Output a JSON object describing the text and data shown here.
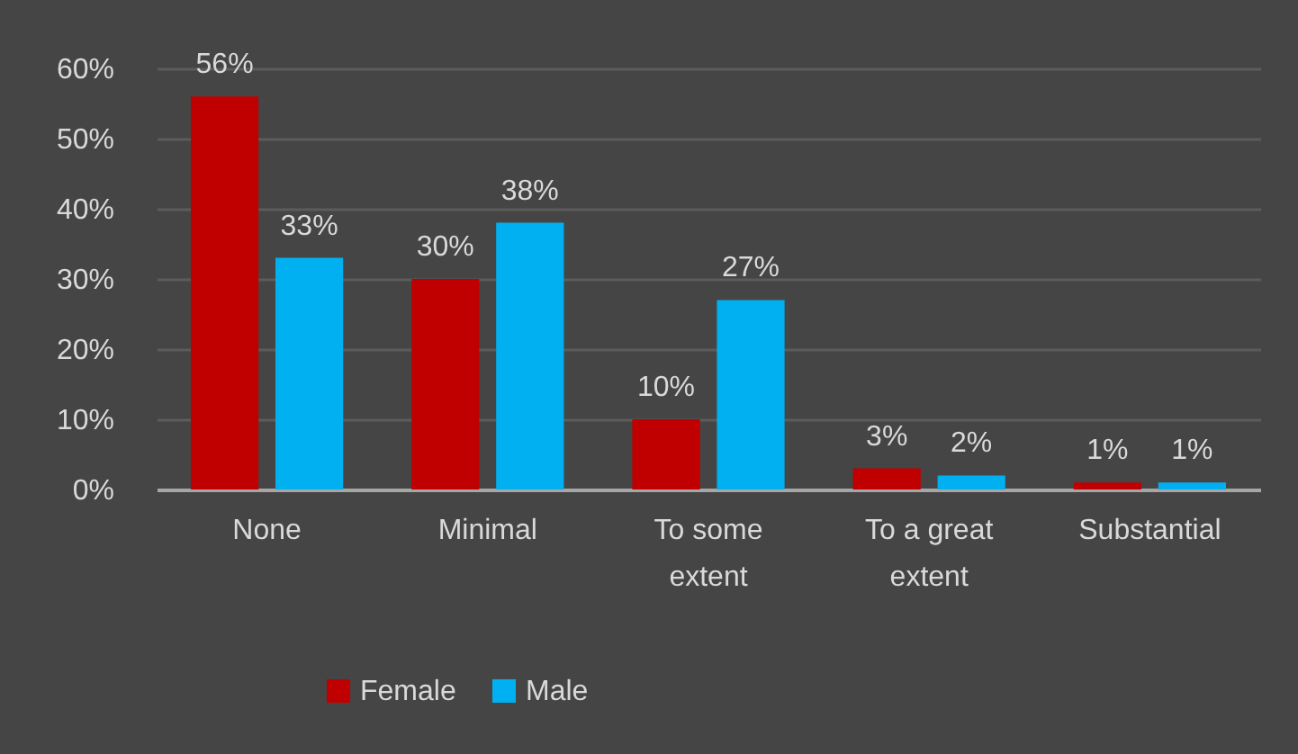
{
  "chart_data": {
    "type": "bar",
    "categories": [
      "None",
      "Minimal",
      "To some extent",
      "To a great extent",
      "Substantial"
    ],
    "series": [
      {
        "name": "Female",
        "color": "#c00000",
        "values": [
          56,
          30,
          10,
          3,
          1
        ],
        "value_labels": [
          "56%",
          "30%",
          "10%",
          "3%",
          "1%"
        ]
      },
      {
        "name": "Male",
        "color": "#00b0f0",
        "values": [
          33,
          38,
          27,
          2,
          1
        ],
        "value_labels": [
          "33%",
          "38%",
          "27%",
          "2%",
          "1%"
        ]
      }
    ],
    "ylim": [
      0,
      60
    ],
    "yticks": [
      {
        "value": 0,
        "label": "0%"
      },
      {
        "value": 10,
        "label": "10%"
      },
      {
        "value": 20,
        "label": "20%"
      },
      {
        "value": 30,
        "label": "30%"
      },
      {
        "value": 40,
        "label": "40%"
      },
      {
        "value": 50,
        "label": "50%"
      },
      {
        "value": 60,
        "label": "60%"
      }
    ],
    "grid": "y",
    "legend": "bottom"
  }
}
